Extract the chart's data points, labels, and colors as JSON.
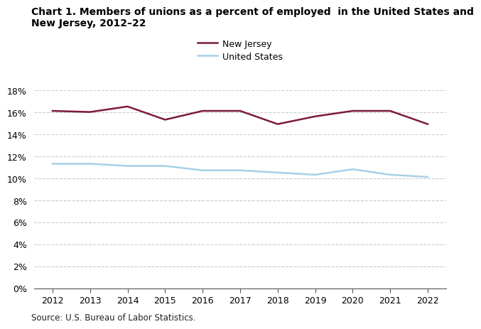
{
  "title_line1": "Chart 1. Members of unions as a percent of employed  in the United States and",
  "title_line2": "New Jersey, 2012–22",
  "years": [
    2012,
    2013,
    2014,
    2015,
    2016,
    2017,
    2018,
    2019,
    2020,
    2021,
    2022
  ],
  "new_jersey": [
    16.1,
    16.0,
    16.5,
    15.3,
    16.1,
    16.1,
    14.9,
    15.6,
    16.1,
    16.1,
    14.9
  ],
  "united_states": [
    11.3,
    11.3,
    11.1,
    11.1,
    10.7,
    10.7,
    10.5,
    10.3,
    10.8,
    10.3,
    10.1
  ],
  "nj_color": "#7b1a3d",
  "us_color": "#a8d0e8",
  "nj_label": "New Jersey",
  "us_label": "United States",
  "ylim": [
    0,
    18
  ],
  "yticks": [
    0,
    2,
    4,
    6,
    8,
    10,
    12,
    14,
    16,
    18
  ],
  "source": "Source: U.S. Bureau of Labor Statistics.",
  "background_color": "#ffffff",
  "grid_color": "#cccccc",
  "line_width": 1.8
}
